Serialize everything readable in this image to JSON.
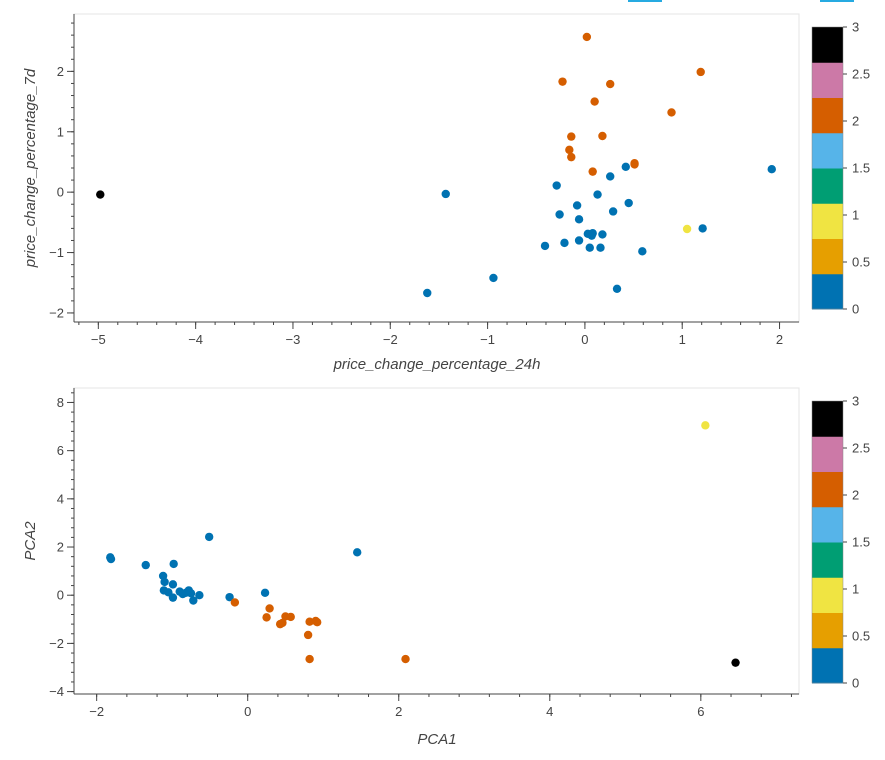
{
  "palette": [
    "#0072B2",
    "#E69F00",
    "#F0E442",
    "#009E73",
    "#56B4E9",
    "#D55E00",
    "#CC79A7",
    "#000000"
  ],
  "chart_data": [
    {
      "type": "scatter",
      "xlabel": "price_change_percentage_24h",
      "ylabel": "price_change_percentage_7d",
      "xlim": [
        -5.25,
        2.2
      ],
      "ylim": [
        -2.15,
        2.95
      ],
      "xticks": [
        -5,
        -4,
        -3,
        -2,
        -1,
        0,
        1,
        2
      ],
      "xtick_labels": [
        "−5",
        "−4",
        "−3",
        "−2",
        "−1",
        "0",
        "1",
        "2"
      ],
      "yticks": [
        -2,
        -1,
        0,
        1,
        2
      ],
      "ytick_labels": [
        "−2",
        "−1",
        "0",
        "1",
        "2"
      ],
      "colorbar": {
        "range": [
          0,
          3
        ],
        "ticks": [
          "0",
          "0.5",
          "1",
          "1.5",
          "2",
          "2.5",
          "3"
        ]
      },
      "points": [
        {
          "x": -4.98,
          "y": -0.04,
          "c": 3
        },
        {
          "x": -1.43,
          "y": -0.03,
          "c": 0
        },
        {
          "x": -1.62,
          "y": -1.67,
          "c": 0
        },
        {
          "x": -0.94,
          "y": -1.42,
          "c": 0
        },
        {
          "x": 0.02,
          "y": 2.57,
          "c": 2
        },
        {
          "x": -0.23,
          "y": 1.83,
          "c": 2
        },
        {
          "x": 0.26,
          "y": 1.79,
          "c": 2
        },
        {
          "x": 1.19,
          "y": 1.99,
          "c": 2
        },
        {
          "x": 0.1,
          "y": 1.5,
          "c": 2
        },
        {
          "x": 0.89,
          "y": 1.32,
          "c": 2
        },
        {
          "x": -0.14,
          "y": 0.92,
          "c": 2
        },
        {
          "x": 0.18,
          "y": 0.93,
          "c": 2
        },
        {
          "x": -0.16,
          "y": 0.7,
          "c": 2
        },
        {
          "x": -0.14,
          "y": 0.58,
          "c": 2
        },
        {
          "x": 0.08,
          "y": 0.34,
          "c": 2
        },
        {
          "x": 0.51,
          "y": 0.48,
          "c": 2
        },
        {
          "x": 0.51,
          "y": 0.46,
          "c": 2
        },
        {
          "x": 0.42,
          "y": 0.42,
          "c": 0
        },
        {
          "x": 0.26,
          "y": 0.26,
          "c": 0
        },
        {
          "x": -0.29,
          "y": 0.11,
          "c": 0
        },
        {
          "x": 0.13,
          "y": -0.04,
          "c": 0
        },
        {
          "x": -0.08,
          "y": -0.22,
          "c": 0
        },
        {
          "x": 0.45,
          "y": -0.18,
          "c": 0
        },
        {
          "x": -0.26,
          "y": -0.37,
          "c": 0
        },
        {
          "x": 0.29,
          "y": -0.32,
          "c": 0
        },
        {
          "x": -0.06,
          "y": -0.45,
          "c": 0
        },
        {
          "x": 0.03,
          "y": -0.69,
          "c": 0
        },
        {
          "x": 0.08,
          "y": -0.68,
          "c": 0
        },
        {
          "x": 0.18,
          "y": -0.7,
          "c": 0
        },
        {
          "x": 0.07,
          "y": -0.72,
          "c": 0
        },
        {
          "x": -0.06,
          "y": -0.8,
          "c": 0
        },
        {
          "x": -0.21,
          "y": -0.84,
          "c": 0
        },
        {
          "x": -0.41,
          "y": -0.89,
          "c": 0
        },
        {
          "x": 0.05,
          "y": -0.92,
          "c": 0
        },
        {
          "x": 0.16,
          "y": -0.92,
          "c": 0
        },
        {
          "x": 0.59,
          "y": -0.98,
          "c": 0
        },
        {
          "x": 1.21,
          "y": -0.6,
          "c": 0
        },
        {
          "x": 1.05,
          "y": -0.61,
          "c": 1
        },
        {
          "x": 1.92,
          "y": 0.38,
          "c": 0
        },
        {
          "x": 0.33,
          "y": -1.6,
          "c": 0
        }
      ]
    },
    {
      "type": "scatter",
      "xlabel": "PCA1",
      "ylabel": "PCA2",
      "xlim": [
        -2.3,
        7.3
      ],
      "ylim": [
        -4.1,
        8.6
      ],
      "xticks": [
        -2,
        0,
        2,
        4,
        6
      ],
      "xtick_labels": [
        "−2",
        "0",
        "2",
        "4",
        "6"
      ],
      "yticks": [
        -4,
        -2,
        0,
        2,
        4,
        6,
        8
      ],
      "ytick_labels": [
        "−4",
        "−2",
        "0",
        "2",
        "4",
        "6",
        "8"
      ],
      "colorbar": {
        "range": [
          0,
          3
        ],
        "ticks": [
          "0",
          "0.5",
          "1",
          "1.5",
          "2",
          "2.5",
          "3"
        ]
      },
      "points": [
        {
          "x": 6.06,
          "y": 7.05,
          "c": 1
        },
        {
          "x": 6.46,
          "y": -2.8,
          "c": 3
        },
        {
          "x": -1.82,
          "y": 1.57,
          "c": 0
        },
        {
          "x": -1.81,
          "y": 1.5,
          "c": 0
        },
        {
          "x": -1.35,
          "y": 1.25,
          "c": 0
        },
        {
          "x": -0.98,
          "y": 1.3,
          "c": 0
        },
        {
          "x": -0.51,
          "y": 2.42,
          "c": 0
        },
        {
          "x": 1.45,
          "y": 1.78,
          "c": 0
        },
        {
          "x": -1.12,
          "y": 0.8,
          "c": 0
        },
        {
          "x": -1.1,
          "y": 0.55,
          "c": 0
        },
        {
          "x": -0.99,
          "y": 0.45,
          "c": 0
        },
        {
          "x": -1.11,
          "y": 0.2,
          "c": 0
        },
        {
          "x": -1.05,
          "y": 0.12,
          "c": 0
        },
        {
          "x": -0.99,
          "y": -0.1,
          "c": 0
        },
        {
          "x": -0.9,
          "y": 0.15,
          "c": 0
        },
        {
          "x": -0.86,
          "y": 0.05,
          "c": 0
        },
        {
          "x": -0.82,
          "y": 0.1,
          "c": 0
        },
        {
          "x": -0.78,
          "y": 0.2,
          "c": 0
        },
        {
          "x": -0.75,
          "y": 0.08,
          "c": 0
        },
        {
          "x": -0.72,
          "y": -0.22,
          "c": 0
        },
        {
          "x": -0.64,
          "y": 0.0,
          "c": 0
        },
        {
          "x": -0.24,
          "y": -0.08,
          "c": 0
        },
        {
          "x": 0.23,
          "y": 0.1,
          "c": 0
        },
        {
          "x": -0.17,
          "y": -0.3,
          "c": 2
        },
        {
          "x": 0.29,
          "y": -0.55,
          "c": 2
        },
        {
          "x": 0.25,
          "y": -0.92,
          "c": 2
        },
        {
          "x": 0.5,
          "y": -0.88,
          "c": 2
        },
        {
          "x": 0.57,
          "y": -0.9,
          "c": 2
        },
        {
          "x": 0.43,
          "y": -1.2,
          "c": 2
        },
        {
          "x": 0.46,
          "y": -1.15,
          "c": 2
        },
        {
          "x": 0.82,
          "y": -1.1,
          "c": 2
        },
        {
          "x": 0.9,
          "y": -1.07,
          "c": 2
        },
        {
          "x": 0.92,
          "y": -1.12,
          "c": 2
        },
        {
          "x": 0.8,
          "y": -1.65,
          "c": 2
        },
        {
          "x": 0.82,
          "y": -2.65,
          "c": 2
        },
        {
          "x": 2.09,
          "y": -2.65,
          "c": 2
        }
      ]
    }
  ]
}
